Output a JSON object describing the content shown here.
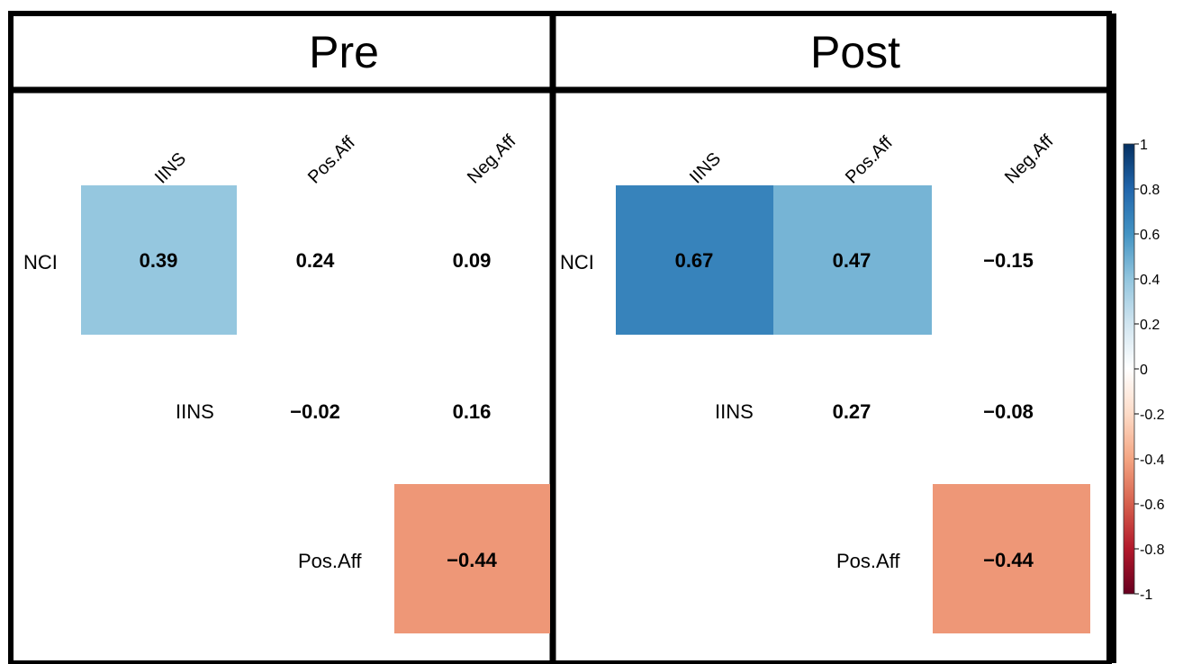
{
  "chart_data": [
    {
      "type": "heatmap",
      "title": "Pre",
      "columns": [
        "IINS",
        "Pos.Aff",
        "Neg.Aff"
      ],
      "rows": [
        "NCI",
        "IINS",
        "Pos.Aff"
      ],
      "values": [
        [
          0.39,
          0.24,
          0.09
        ],
        [
          null,
          -0.02,
          0.16
        ],
        [
          null,
          null,
          -0.44
        ]
      ],
      "value_labels": [
        [
          "0.39",
          "0.24",
          "0.09"
        ],
        [
          null,
          "−0.02",
          "0.16"
        ],
        [
          null,
          null,
          "−0.44"
        ]
      ],
      "highlighted": [
        [
          true,
          false,
          false
        ],
        [
          false,
          false,
          false
        ],
        [
          false,
          false,
          true
        ]
      ]
    },
    {
      "type": "heatmap",
      "title": "Post",
      "columns": [
        "IINS",
        "Pos.Aff",
        "Neg.Aff"
      ],
      "rows": [
        "NCI",
        "IINS",
        "Pos.Aff"
      ],
      "values": [
        [
          0.67,
          0.47,
          -0.15
        ],
        [
          null,
          0.27,
          -0.08
        ],
        [
          null,
          null,
          -0.44
        ]
      ],
      "value_labels": [
        [
          "0.67",
          "0.47",
          "−0.15"
        ],
        [
          null,
          "0.27",
          "−0.08"
        ],
        [
          null,
          null,
          "−0.44"
        ]
      ],
      "highlighted": [
        [
          true,
          true,
          false
        ],
        [
          false,
          false,
          false
        ],
        [
          false,
          false,
          true
        ]
      ]
    }
  ],
  "colorbar": {
    "range": [
      -1,
      1
    ],
    "ticks": [
      "1",
      "0.8",
      "0.6",
      "0.4",
      "0.2",
      "0",
      "-0.2",
      "-0.4",
      "-0.6",
      "-0.8",
      "-1"
    ],
    "tick_values": [
      1,
      0.8,
      0.6,
      0.4,
      0.2,
      0,
      -0.2,
      -0.4,
      -0.6,
      -0.8,
      -1
    ],
    "colors": [
      "#67001F",
      "#B2182B",
      "#D6604D",
      "#F4A582",
      "#FDDBC7",
      "#FFFFFF",
      "#D1E5F0",
      "#92C5DE",
      "#4393C3",
      "#2166AC",
      "#053061"
    ]
  }
}
